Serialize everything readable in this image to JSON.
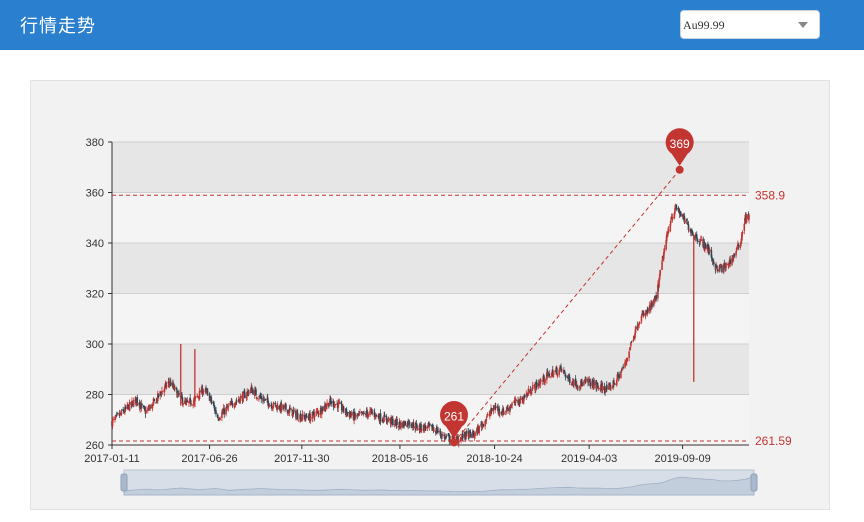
{
  "header": {
    "title": "行情走势"
  },
  "selector": {
    "value": "Au99.99"
  },
  "colors": {
    "header_bg": "#2a7fcf",
    "up": "#c23531",
    "down": "#2f4554",
    "markers": "#c23531",
    "band_dark": "#e6e6e6",
    "band_light": "#f4f4f4"
  },
  "chart_data": {
    "type": "candlestick",
    "title": "",
    "xlabel": "",
    "ylabel": "",
    "ylim": [
      260,
      380
    ],
    "yticks": [
      260,
      280,
      300,
      320,
      340,
      360,
      380
    ],
    "x_range": [
      "2017-01-11",
      "2019-12-31"
    ],
    "xticks": [
      "2017-01-11",
      "2017-06-26",
      "2017-11-30",
      "2018-05-16",
      "2018-10-24",
      "2019-04-03",
      "2019-09-09"
    ],
    "grid": "alternating horizontal bands",
    "series": [
      {
        "type": "close-path",
        "points": [
          [
            "2017-01-11",
            269
          ],
          [
            "2017-01-25",
            272
          ],
          [
            "2017-02-08",
            275
          ],
          [
            "2017-02-22",
            278
          ],
          [
            "2017-03-08",
            273
          ],
          [
            "2017-03-22",
            276
          ],
          [
            "2017-04-05",
            281
          ],
          [
            "2017-04-19",
            285
          ],
          [
            "2017-05-03",
            280
          ],
          [
            "2017-05-17",
            276
          ],
          [
            "2017-06-01",
            278
          ],
          [
            "2017-06-15",
            282
          ],
          [
            "2017-06-26",
            279
          ],
          [
            "2017-07-10",
            271
          ],
          [
            "2017-07-24",
            274
          ],
          [
            "2017-08-07",
            277
          ],
          [
            "2017-08-21",
            279
          ],
          [
            "2017-09-05",
            282
          ],
          [
            "2017-09-19",
            279
          ],
          [
            "2017-10-09",
            276
          ],
          [
            "2017-10-23",
            275
          ],
          [
            "2017-11-06",
            274
          ],
          [
            "2017-11-20",
            272
          ],
          [
            "2017-11-30",
            271
          ],
          [
            "2017-12-14",
            271
          ],
          [
            "2018-01-02",
            274
          ],
          [
            "2018-01-16",
            277
          ],
          [
            "2018-01-30",
            276
          ],
          [
            "2018-02-13",
            273
          ],
          [
            "2018-02-28",
            271
          ],
          [
            "2018-03-14",
            272
          ],
          [
            "2018-03-28",
            273
          ],
          [
            "2018-04-11",
            271
          ],
          [
            "2018-04-25",
            270
          ],
          [
            "2018-05-16",
            268
          ],
          [
            "2018-06-01",
            269
          ],
          [
            "2018-06-15",
            267
          ],
          [
            "2018-07-02",
            267
          ],
          [
            "2018-07-16",
            266
          ],
          [
            "2018-08-01",
            263
          ],
          [
            "2018-08-20",
            262
          ],
          [
            "2018-09-05",
            264
          ],
          [
            "2018-09-20",
            264
          ],
          [
            "2018-10-08",
            270
          ],
          [
            "2018-10-24",
            275
          ],
          [
            "2018-11-08",
            273
          ],
          [
            "2018-11-22",
            276
          ],
          [
            "2018-12-10",
            278
          ],
          [
            "2018-12-25",
            282
          ],
          [
            "2019-01-10",
            285
          ],
          [
            "2019-01-25",
            288
          ],
          [
            "2019-02-14",
            290
          ],
          [
            "2019-02-28",
            286
          ],
          [
            "2019-03-14",
            284
          ],
          [
            "2019-04-03",
            285
          ],
          [
            "2019-04-18",
            283
          ],
          [
            "2019-05-06",
            282
          ],
          [
            "2019-05-20",
            286
          ],
          [
            "2019-06-03",
            292
          ],
          [
            "2019-06-17",
            303
          ],
          [
            "2019-06-28",
            310
          ],
          [
            "2019-07-12",
            313
          ],
          [
            "2019-07-26",
            318
          ],
          [
            "2019-08-07",
            335
          ],
          [
            "2019-08-20",
            350
          ],
          [
            "2019-08-30",
            354
          ],
          [
            "2019-09-09",
            350
          ],
          [
            "2019-09-23",
            345
          ],
          [
            "2019-10-08",
            341
          ],
          [
            "2019-10-22",
            338
          ],
          [
            "2019-11-05",
            330
          ],
          [
            "2019-11-19",
            330
          ],
          [
            "2019-12-03",
            334
          ],
          [
            "2019-12-16",
            340
          ],
          [
            "2019-12-24",
            350
          ],
          [
            "2019-12-31",
            350
          ]
        ]
      }
    ],
    "spikes": [
      {
        "x": "2017-05-08",
        "high": 300
      },
      {
        "x": "2017-06-01",
        "high": 298
      },
      {
        "x": "2019-09-28",
        "low": 285,
        "high": 343
      }
    ],
    "mark_points": [
      {
        "label": "369",
        "x": "2019-09-04",
        "value": 369
      },
      {
        "label": "261",
        "x": "2018-08-16",
        "value": 261
      }
    ],
    "mark_lines": [
      {
        "label": "358.9",
        "value": 358.9
      },
      {
        "label": "261.59",
        "value": 261.59
      }
    ]
  }
}
